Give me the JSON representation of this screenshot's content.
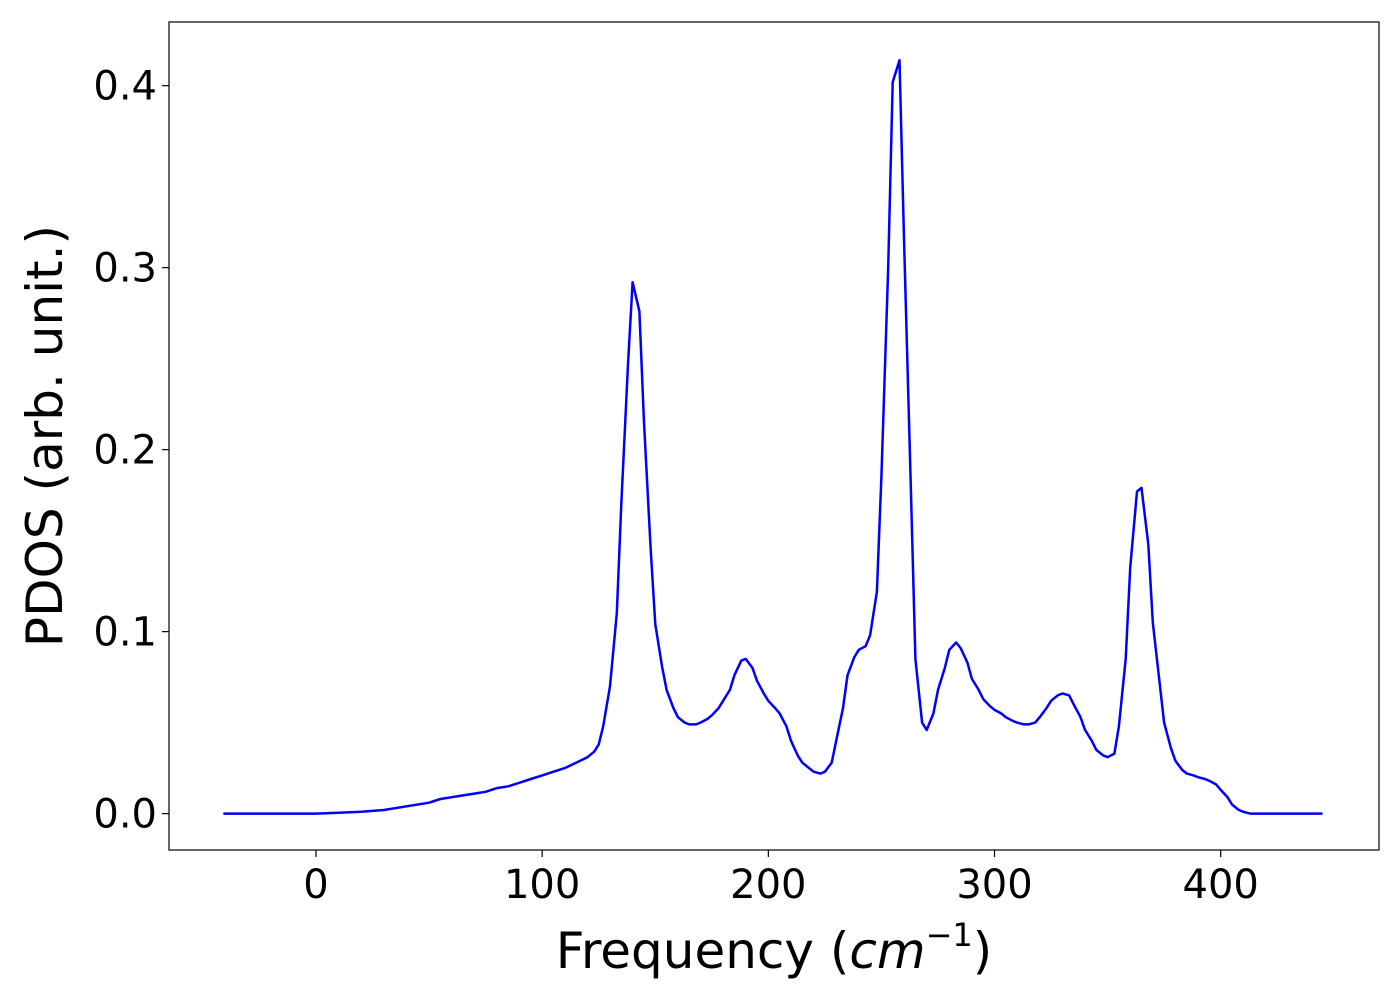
{
  "chart_data": {
    "type": "line",
    "title": "",
    "xlabel": {
      "prefix": "Frequency (",
      "unit": "cm",
      "exponent": "−1",
      "suffix": ")"
    },
    "ylabel": "PDOS (arb. unit.)",
    "xlim": [
      -65,
      470
    ],
    "ylim": [
      -0.02,
      0.435
    ],
    "xticks": [
      {
        "value": 0,
        "label": "0"
      },
      {
        "value": 100,
        "label": "100"
      },
      {
        "value": 200,
        "label": "200"
      },
      {
        "value": 300,
        "label": "300"
      },
      {
        "value": 400,
        "label": "400"
      }
    ],
    "yticks": [
      {
        "value": 0.0,
        "label": "0.0"
      },
      {
        "value": 0.1,
        "label": "0.1"
      },
      {
        "value": 0.2,
        "label": "0.2"
      },
      {
        "value": 0.3,
        "label": "0.3"
      },
      {
        "value": 0.4,
        "label": "0.4"
      }
    ],
    "grid": false,
    "legend": "none",
    "series": [
      {
        "color": "#0000ff",
        "x": [
          -41,
          -20,
          0,
          10,
          20,
          30,
          40,
          50,
          55,
          60,
          65,
          70,
          75,
          80,
          85,
          90,
          95,
          100,
          105,
          110,
          115,
          120,
          123,
          125,
          127,
          130,
          133,
          135,
          138,
          140,
          143,
          145,
          148,
          150,
          153,
          155,
          158,
          160,
          163,
          165,
          168,
          170,
          173,
          175,
          178,
          180,
          183,
          185,
          188,
          190,
          193,
          195,
          198,
          200,
          203,
          205,
          208,
          210,
          213,
          215,
          218,
          220,
          223,
          225,
          228,
          230,
          233,
          235,
          238,
          240,
          243,
          245,
          248,
          250,
          253,
          255,
          258,
          260,
          263,
          265,
          268,
          270,
          273,
          275,
          278,
          280,
          283,
          285,
          288,
          290,
          293,
          295,
          298,
          300,
          303,
          305,
          308,
          310,
          313,
          315,
          318,
          320,
          323,
          325,
          328,
          330,
          333,
          335,
          338,
          340,
          343,
          345,
          348,
          350,
          353,
          355,
          358,
          360,
          363,
          365,
          368,
          370,
          373,
          375,
          378,
          380,
          383,
          385,
          388,
          390,
          393,
          395,
          398,
          400,
          403,
          405,
          408,
          410,
          413,
          415,
          420,
          430,
          445
        ],
        "y": [
          0.0,
          0.0,
          0.0,
          0.0005,
          0.001,
          0.002,
          0.004,
          0.006,
          0.008,
          0.009,
          0.01,
          0.011,
          0.012,
          0.014,
          0.015,
          0.017,
          0.019,
          0.021,
          0.023,
          0.025,
          0.028,
          0.031,
          0.034,
          0.038,
          0.048,
          0.07,
          0.11,
          0.17,
          0.248,
          0.292,
          0.276,
          0.215,
          0.145,
          0.104,
          0.081,
          0.068,
          0.058,
          0.053,
          0.05,
          0.049,
          0.049,
          0.05,
          0.052,
          0.054,
          0.058,
          0.062,
          0.068,
          0.076,
          0.084,
          0.085,
          0.08,
          0.073,
          0.066,
          0.062,
          0.058,
          0.055,
          0.048,
          0.04,
          0.032,
          0.028,
          0.025,
          0.023,
          0.022,
          0.023,
          0.028,
          0.04,
          0.058,
          0.076,
          0.086,
          0.09,
          0.092,
          0.098,
          0.122,
          0.185,
          0.3,
          0.402,
          0.414,
          0.316,
          0.18,
          0.085,
          0.05,
          0.046,
          0.055,
          0.068,
          0.08,
          0.09,
          0.094,
          0.091,
          0.083,
          0.074,
          0.068,
          0.063,
          0.059,
          0.057,
          0.055,
          0.053,
          0.051,
          0.05,
          0.049,
          0.049,
          0.05,
          0.053,
          0.058,
          0.062,
          0.065,
          0.066,
          0.065,
          0.06,
          0.053,
          0.046,
          0.04,
          0.035,
          0.032,
          0.031,
          0.033,
          0.048,
          0.085,
          0.135,
          0.177,
          0.179,
          0.148,
          0.105,
          0.072,
          0.05,
          0.036,
          0.029,
          0.024,
          0.022,
          0.021,
          0.02,
          0.019,
          0.018,
          0.016,
          0.013,
          0.009,
          0.005,
          0.002,
          0.001,
          0.0,
          0.0,
          0.0,
          0.0,
          0.0
        ]
      }
    ]
  }
}
